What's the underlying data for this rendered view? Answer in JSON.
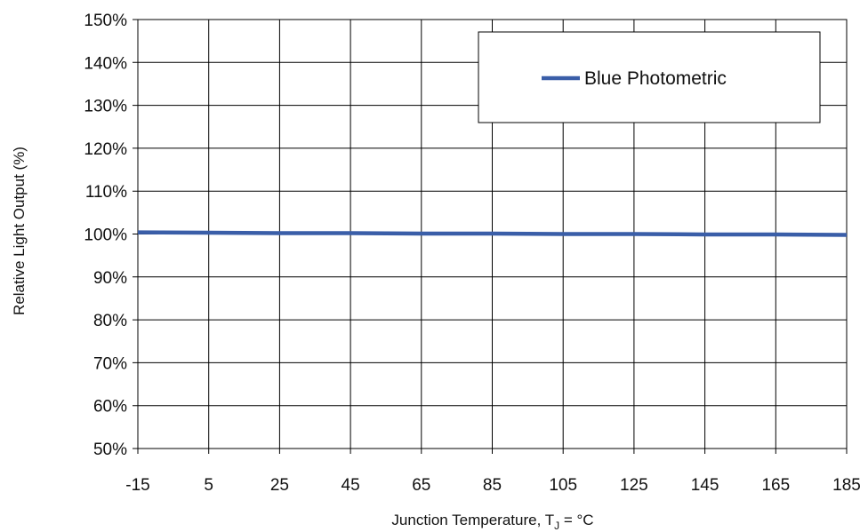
{
  "chart_data": {
    "type": "line",
    "title": "",
    "xlabel_main": "Junction Temperature, T",
    "xlabel_sub": "J",
    "xlabel_suffix": " = °C",
    "ylabel": "Relative Light Output (%)",
    "xlim": [
      -15,
      185
    ],
    "ylim": [
      50,
      150
    ],
    "x_ticks": [
      -15,
      5,
      25,
      45,
      65,
      85,
      105,
      125,
      145,
      165,
      185
    ],
    "y_ticks": [
      50,
      60,
      70,
      80,
      90,
      100,
      110,
      120,
      130,
      140,
      150
    ],
    "y_tick_labels": [
      "50%",
      "60%",
      "70%",
      "80%",
      "90%",
      "100%",
      "110%",
      "120%",
      "130%",
      "140%",
      "150%"
    ],
    "grid": true,
    "legend_position": "top-right",
    "series": [
      {
        "name": "Blue Photometric",
        "color": "#3A5EA8",
        "x": [
          -15,
          5,
          25,
          45,
          65,
          85,
          105,
          125,
          145,
          165,
          185
        ],
        "y": [
          100.4,
          100.3,
          100.2,
          100.2,
          100.1,
          100.1,
          100.0,
          100.0,
          99.9,
          99.9,
          99.8
        ]
      }
    ]
  }
}
